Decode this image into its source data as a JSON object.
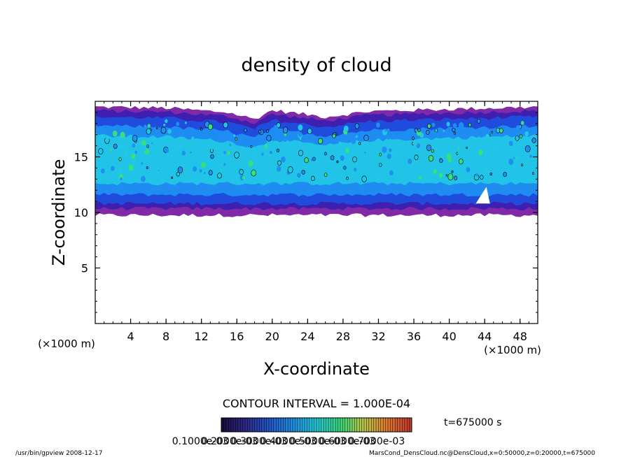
{
  "chart_data": {
    "type": "heatmap",
    "title": "density of cloud",
    "xlabel": "X-coordinate",
    "ylabel": "Z-coordinate",
    "x_unit": "(×1000 m)",
    "y_unit": "(×1000 m)",
    "xlim": [
      0,
      50
    ],
    "ylim": [
      0,
      20
    ],
    "x_ticks": [
      4,
      8,
      12,
      16,
      20,
      24,
      28,
      32,
      36,
      40,
      44,
      48
    ],
    "y_ticks": [
      5,
      10,
      15
    ],
    "x_minor_step": 1,
    "y_minor_step": 1,
    "cloud_base_km": 10,
    "cloud_top_km": 19.5,
    "cloud_top_profile": [
      {
        "x": 0,
        "top": 19.5
      },
      {
        "x": 8,
        "top": 19.4
      },
      {
        "x": 15,
        "top": 19.0
      },
      {
        "x": 18,
        "top": 18.4
      },
      {
        "x": 20,
        "top": 19.2
      },
      {
        "x": 26,
        "top": 18.6
      },
      {
        "x": 31,
        "top": 19.1
      },
      {
        "x": 40,
        "top": 19.3
      },
      {
        "x": 50,
        "top": 19.5
      }
    ],
    "contour_interval": "CONTOUR INTERVAL = 1.000E-04",
    "colorbar": {
      "min": 0.0001,
      "max": 0.0007,
      "labels": [
        "0.1000e-03",
        "0.2000e-03",
        "0.3000e-03",
        "0.4000e-03",
        "0.5000e-03",
        "0.6000e-03",
        "0.7000e-03"
      ],
      "colors": [
        "#1a0f3c",
        "#2c2a8a",
        "#2257c9",
        "#1f8fe0",
        "#20c6d8",
        "#3ad97c",
        "#b8c84a",
        "#e07a2e",
        "#c0392b"
      ]
    },
    "time_label": "t=675000 s",
    "palette": {
      "edge": "#7a1fa2",
      "outer": "#3a1fb0",
      "mid": "#1f4fe0",
      "inner": "#1f8ff0",
      "core": "#22c7e6",
      "peak": "#36e07a"
    }
  },
  "footer": {
    "left": "/usr/bin/gpview   2008-12-17",
    "right": "MarsCond_DensCloud.nc@DensCloud,x=0:50000,z=0:20000,t=675000"
  }
}
